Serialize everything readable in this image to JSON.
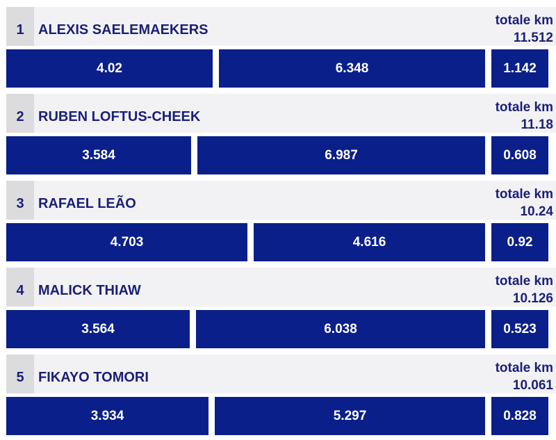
{
  "chart_data": {
    "type": "bar",
    "total_label": "totale km",
    "colors": {
      "bar": "#0a1f8a",
      "header": "#f2f2f4",
      "rank_box": "#dcdcde",
      "text": "#1b1f78"
    },
    "players": [
      {
        "rank": "1",
        "name": "ALEXIS SAELEMAEKERS",
        "total": "11.512",
        "values": [
          4.02,
          6.348,
          1.142
        ],
        "labels": [
          "4.02",
          "6.348",
          "1.142"
        ]
      },
      {
        "rank": "2",
        "name": "RUBEN LOFTUS-CHEEK",
        "total": "11.18",
        "values": [
          3.584,
          6.987,
          0.608
        ],
        "labels": [
          "3.584",
          "6.987",
          "0.608"
        ]
      },
      {
        "rank": "3",
        "name": "RAFAEL LEÃO",
        "total": "10.24",
        "values": [
          4.703,
          4.616,
          0.92
        ],
        "labels": [
          "4.703",
          "4.616",
          "0.92"
        ]
      },
      {
        "rank": "4",
        "name": "MALICK THIAW",
        "total": "10.126",
        "values": [
          3.564,
          6.038,
          0.523
        ],
        "labels": [
          "3.564",
          "6.038",
          "0.523"
        ]
      },
      {
        "rank": "5",
        "name": "FIKAYO TOMORI",
        "total": "10.061",
        "values": [
          3.934,
          5.297,
          0.828
        ],
        "labels": [
          "3.934",
          "5.297",
          "0.828"
        ]
      }
    ]
  }
}
